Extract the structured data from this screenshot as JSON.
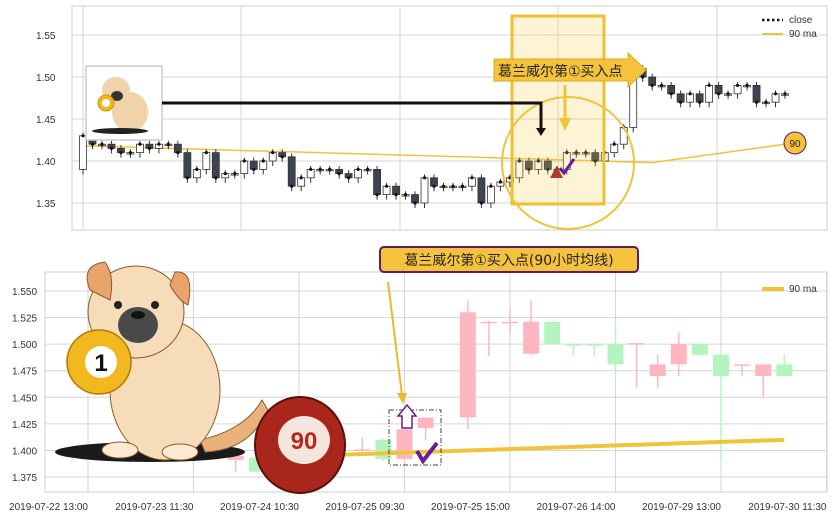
{
  "colors": {
    "up_top": "#ffffff",
    "down_top": "#3c4454",
    "up_bottom": "#ffb6c1",
    "down_bottom": "#b4f5bf",
    "ma": "#f0c43a",
    "highlight": "#f5c842",
    "annotation_border": "#5a1a6e",
    "marker_triangle": "#b23a2a",
    "check": "#6a1b9a"
  },
  "chart_data": [
    {
      "type": "candlestick",
      "panel": "top",
      "ylim": [
        1.32,
        1.58
      ],
      "yticks": [
        1.35,
        1.4,
        1.45,
        1.5,
        1.55
      ],
      "grid": true,
      "legend": {
        "placement": "top-right",
        "entries": [
          {
            "label": "close",
            "style": "dotted"
          },
          {
            "label": "90 ma",
            "style": "line"
          }
        ]
      },
      "close": [
        1.43,
        1.42,
        1.42,
        1.415,
        1.41,
        1.41,
        1.42,
        1.415,
        1.42,
        1.42,
        1.41,
        1.38,
        1.39,
        1.41,
        1.38,
        1.385,
        1.385,
        1.4,
        1.39,
        1.4,
        1.41,
        1.405,
        1.37,
        1.38,
        1.39,
        1.39,
        1.39,
        1.385,
        1.38,
        1.39,
        1.39,
        1.36,
        1.37,
        1.36,
        1.36,
        1.35,
        1.38,
        1.37,
        1.37,
        1.37,
        1.37,
        1.38,
        1.35,
        1.37,
        1.375,
        1.38,
        1.4,
        1.39,
        1.4,
        1.39,
        1.39,
        1.41,
        1.41,
        1.41,
        1.4,
        1.41,
        1.42,
        1.44,
        1.51,
        1.5,
        1.49,
        1.49,
        1.48,
        1.47,
        1.48,
        1.47,
        1.49,
        1.48,
        1.48,
        1.49,
        1.49,
        1.47,
        1.47,
        1.48,
        1.48
      ],
      "ma90": [
        [
          0,
          1.418
        ],
        [
          40,
          1.405
        ],
        [
          60,
          1.398
        ],
        [
          74,
          1.42
        ]
      ],
      "annotations": {
        "label": "葛兰威尔第①买入点",
        "badge": "90"
      }
    },
    {
      "type": "candlestick",
      "panel": "bottom",
      "ylim": [
        1.36,
        1.565
      ],
      "yticks": [
        1.375,
        1.4,
        1.425,
        1.45,
        1.475,
        1.5,
        1.525,
        1.55
      ],
      "ytick_labels": [
        "1.375",
        "1.400",
        "1.425",
        "1.450",
        "1.475",
        "1.500",
        "1.525",
        "1.550"
      ],
      "xtick_labels": [
        "2019-07-22 13:00",
        "2019-07-23 11:30",
        "2019-07-24 10:30",
        "2019-07-25 09:30",
        "2019-07-25 15:00",
        "2019-07-26 14:00",
        "2019-07-29 13:00",
        "2019-07-30 11:30"
      ],
      "grid": true,
      "legend": {
        "placement": "top-right",
        "entries": [
          {
            "label": "90 ma"
          }
        ]
      },
      "candles": [
        {
          "i": 7,
          "o": 1.391,
          "h": 1.396,
          "l": 1.38,
          "c": 1.395
        },
        {
          "i": 8,
          "o": 1.393,
          "h": 1.395,
          "l": 1.379,
          "c": 1.38
        },
        {
          "i": 13,
          "o": 1.4,
          "h": 1.412,
          "l": 1.399,
          "c": 1.401
        },
        {
          "i": 14,
          "o": 1.41,
          "h": 1.411,
          "l": 1.39,
          "c": 1.392
        },
        {
          "i": 15,
          "o": 1.392,
          "h": 1.421,
          "l": 1.391,
          "c": 1.42
        },
        {
          "i": 16,
          "o": 1.421,
          "h": 1.431,
          "l": 1.41,
          "c": 1.431
        },
        {
          "i": 18,
          "o": 1.431,
          "h": 1.541,
          "l": 1.42,
          "c": 1.53
        },
        {
          "i": 19,
          "o": 1.52,
          "h": 1.522,
          "l": 1.489,
          "c": 1.521
        },
        {
          "i": 20,
          "o": 1.52,
          "h": 1.532,
          "l": 1.51,
          "c": 1.521
        },
        {
          "i": 21,
          "o": 1.491,
          "h": 1.541,
          "l": 1.49,
          "c": 1.521
        },
        {
          "i": 22,
          "o": 1.521,
          "h": 1.522,
          "l": 1.5,
          "c": 1.5
        },
        {
          "i": 23,
          "o": 1.5,
          "h": 1.501,
          "l": 1.489,
          "c": 1.499
        },
        {
          "i": 24,
          "o": 1.5,
          "h": 1.501,
          "l": 1.489,
          "c": 1.499
        },
        {
          "i": 25,
          "o": 1.5,
          "h": 1.521,
          "l": 1.47,
          "c": 1.481
        },
        {
          "i": 26,
          "o": 1.5,
          "h": 1.501,
          "l": 1.459,
          "c": 1.501
        },
        {
          "i": 27,
          "o": 1.47,
          "h": 1.49,
          "l": 1.459,
          "c": 1.481
        },
        {
          "i": 28,
          "o": 1.481,
          "h": 1.511,
          "l": 1.47,
          "c": 1.5
        },
        {
          "i": 29,
          "o": 1.5,
          "h": 1.501,
          "l": 1.49,
          "c": 1.49
        },
        {
          "i": 30,
          "o": 1.49,
          "h": 1.491,
          "l": 1.39,
          "c": 1.47
        },
        {
          "i": 31,
          "o": 1.48,
          "h": 1.481,
          "l": 1.47,
          "c": 1.481
        },
        {
          "i": 32,
          "o": 1.47,
          "h": 1.481,
          "l": 1.45,
          "c": 1.481
        },
        {
          "i": 33,
          "o": 1.481,
          "h": 1.49,
          "l": 1.47,
          "c": 1.47
        }
      ],
      "ma90": [
        [
          12,
          1.396
        ],
        [
          33,
          1.41
        ]
      ],
      "annotations": {
        "label": "葛兰威尔第①买入点(90小时均线)",
        "ball_left": "1",
        "ball_right": "90"
      }
    }
  ]
}
